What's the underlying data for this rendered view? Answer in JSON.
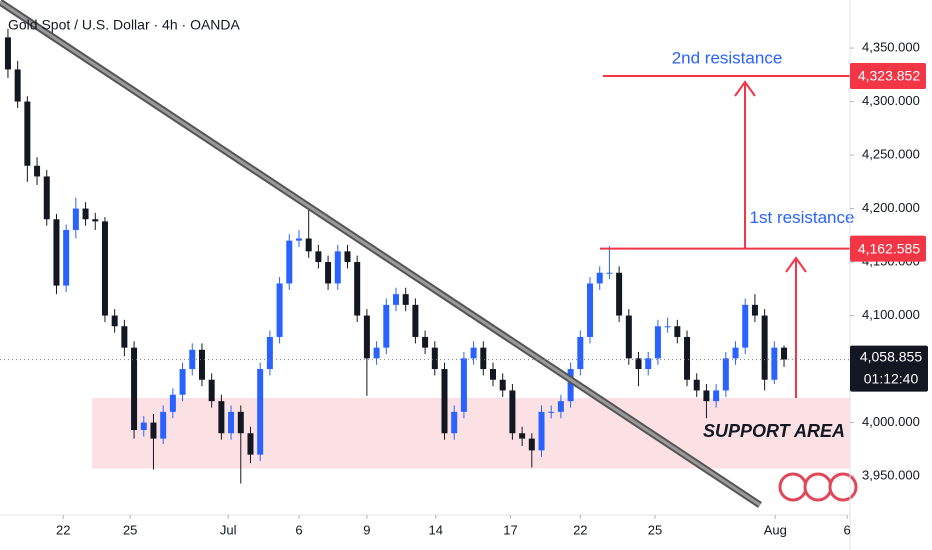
{
  "chart_data": {
    "type": "candlestick",
    "title": "Gold Spot / U.S. Dollar · 4h · OANDA",
    "up_color": "#2962ff",
    "down_color": "#131722",
    "xlim": [
      -0.82,
      86.8
    ],
    "ylim": [
      3913.6,
      4394.9
    ],
    "xticks": [
      {
        "value": 5.7,
        "label": "22"
      },
      {
        "value": 12.6,
        "label": "25"
      },
      {
        "value": 22.7,
        "label": "Jul"
      },
      {
        "value": 30,
        "label": "6"
      },
      {
        "value": 37,
        "label": "9"
      },
      {
        "value": 44.1,
        "label": "14"
      },
      {
        "value": 51.8,
        "label": "17"
      },
      {
        "value": 59,
        "label": "22"
      },
      {
        "value": 66.7,
        "label": "25"
      },
      {
        "value": 79.1,
        "label": "Aug"
      },
      {
        "value": 86.5,
        "label": "6"
      }
    ],
    "yticks": [
      {
        "value": 3950,
        "label": "3,950.000"
      },
      {
        "value": 4000,
        "label": "4,000.000"
      },
      {
        "value": 4050,
        "label": "4,050.000"
      },
      {
        "value": 4100,
        "label": "4,100.000"
      },
      {
        "value": 4150,
        "label": "4,150.000"
      },
      {
        "value": 4200,
        "label": "4,200.000"
      },
      {
        "value": 4250,
        "label": "4,250.000"
      },
      {
        "value": 4300,
        "label": "4,300.000"
      },
      {
        "value": 4350,
        "label": "4,350.000"
      }
    ],
    "open": [
      4360,
      4330,
      4300,
      4240,
      4230,
      4190,
      4128,
      4180,
      4200,
      4190,
      4188,
      4100,
      4090,
      4070,
      3993,
      4000,
      3985,
      4010,
      4026,
      4050,
      4068,
      4040,
      4020,
      3990,
      4010,
      3990,
      3970,
      4050,
      4080,
      4130,
      4170,
      4172,
      4160,
      4150,
      4130,
      4160,
      4150,
      4100,
      4060,
      4070,
      4110,
      4120,
      4110,
      4080,
      4070,
      4050,
      3990,
      4010,
      4060,
      4070,
      4050,
      4040,
      4030,
      3990,
      3985,
      3974,
      4010,
      4010,
      4020,
      4050,
      4080,
      4130,
      4140,
      4140,
      4100,
      4060,
      4050,
      4060,
      4090,
      4090,
      4080,
      4040,
      4030,
      4020,
      4030,
      4060,
      4070,
      4110,
      4100,
      4040,
      4070
    ],
    "high": [
      4368,
      4338,
      4305,
      4248,
      4236,
      4195,
      4185,
      4210,
      4206,
      4196,
      4192,
      4106,
      4096,
      4076,
      4006,
      4008,
      4016,
      4032,
      4056,
      4074,
      4074,
      4046,
      4026,
      4016,
      4016,
      3996,
      4056,
      4086,
      4136,
      4176,
      4180,
      4205,
      4166,
      4156,
      4166,
      4166,
      4156,
      4106,
      4076,
      4116,
      4126,
      4126,
      4116,
      4086,
      4076,
      4056,
      4016,
      4066,
      4076,
      4076,
      4056,
      4046,
      4036,
      3996,
      3990,
      4016,
      4016,
      4026,
      4056,
      4086,
      4136,
      4146,
      4165,
      4146,
      4106,
      4066,
      4066,
      4096,
      4098,
      4096,
      4086,
      4046,
      4036,
      4036,
      4066,
      4076,
      4116,
      4120,
      4106,
      4076,
      4072
    ],
    "low": [
      4322,
      4294,
      4225,
      4222,
      4184,
      4120,
      4122,
      4172,
      4184,
      4180,
      4094,
      4084,
      4062,
      3985,
      3987,
      3956,
      3980,
      4004,
      4020,
      4044,
      4034,
      4014,
      3984,
      3984,
      3943,
      3962,
      3964,
      4044,
      4074,
      4124,
      4164,
      4154,
      4144,
      4124,
      4124,
      4144,
      4094,
      4025,
      4054,
      4064,
      4104,
      4104,
      4074,
      4064,
      4044,
      3984,
      3984,
      4004,
      4054,
      4044,
      4034,
      4024,
      3984,
      3978,
      3958,
      3968,
      4004,
      4004,
      4014,
      4044,
      4074,
      4124,
      4134,
      4094,
      4054,
      4034,
      4044,
      4054,
      4084,
      4074,
      4034,
      4024,
      4004,
      4014,
      4024,
      4054,
      4064,
      4094,
      4030,
      4036,
      4052
    ],
    "close": [
      4330,
      4300,
      4240,
      4230,
      4190,
      4128,
      4180,
      4200,
      4190,
      4188,
      4100,
      4090,
      4070,
      3993,
      4000,
      3985,
      4010,
      4026,
      4050,
      4068,
      4040,
      4020,
      3990,
      4010,
      3990,
      3970,
      4050,
      4080,
      4130,
      4170,
      4172,
      4160,
      4150,
      4130,
      4160,
      4150,
      4100,
      4060,
      4070,
      4110,
      4120,
      4110,
      4080,
      4070,
      4050,
      3990,
      4010,
      4060,
      4070,
      4050,
      4040,
      4030,
      3990,
      3985,
      3974,
      4010,
      4010,
      4020,
      4050,
      4080,
      4130,
      4140,
      4140,
      4100,
      4060,
      4050,
      4060,
      4090,
      4090,
      4080,
      4040,
      4030,
      4020,
      4030,
      4060,
      4070,
      4110,
      4100,
      4040,
      4070,
      4058.855
    ],
    "resistances": [
      {
        "name": "2nd resistance",
        "value": 4323.852,
        "label": "4,323.852"
      },
      {
        "name": "1st resistance",
        "value": 4162.585,
        "label": "4,162.585"
      }
    ],
    "resistance_color": "#f23645",
    "annotation_color": "#2962ff",
    "support_area": {
      "label": "SUPPORT AREA",
      "range": [
        3957,
        4023
      ],
      "color": "#fbe1e4"
    },
    "last_price": {
      "value": 4058.855,
      "label": "4,058.855",
      "countdown": "01:12:40"
    }
  }
}
